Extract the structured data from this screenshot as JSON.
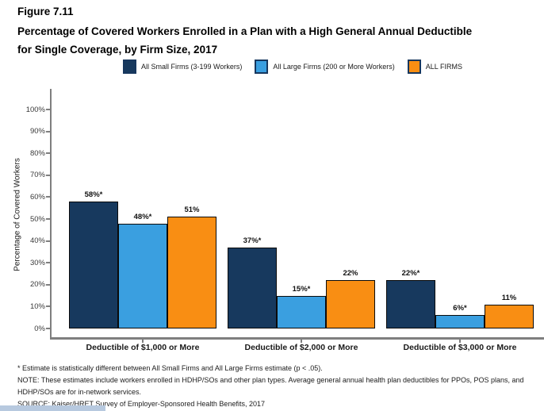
{
  "figure": {
    "label": "Figure 7.11",
    "title_lines": [
      "Percentage of Covered Workers Enrolled in a Plan with a High General Annual Deductible",
      "for Single Coverage, by Firm Size, 2017"
    ]
  },
  "chart_data": {
    "type": "bar",
    "title": "Percentage of Covered Workers Enrolled in a Plan with a High General Annual Deductible for Single Coverage, by Firm Size, 2017",
    "categories": [
      "Deductible of $1,000 or More",
      "Deductible of $2,000 or More",
      "Deductible of $3,000 or More"
    ],
    "series": [
      {
        "name": "All Small Firms (3-199 Workers)",
        "slug": "all-small-firms",
        "color": "#17395E",
        "values": [
          58,
          37,
          22
        ],
        "labels": [
          "58%*",
          "37%*",
          "22%*"
        ]
      },
      {
        "name": "All Large Firms (200 or More Workers)",
        "slug": "all-large-firms",
        "color": "#3A9FE0",
        "values": [
          48,
          15,
          6
        ],
        "labels": [
          "48%*",
          "15%*",
          "6%*"
        ]
      },
      {
        "name": "ALL FIRMS",
        "slug": "all-firms",
        "color": "#F98E13",
        "values": [
          51,
          22,
          11
        ],
        "labels": [
          "51%",
          "22%",
          "11%"
        ]
      }
    ],
    "ylabel": "Percentage of Covered Workers",
    "xlabel": "",
    "ylim": [
      0,
      100
    ],
    "y_tick_labels": [
      "0%",
      "10%",
      "20%",
      "30%",
      "40%",
      "50%",
      "60%",
      "70%",
      "80%",
      "90%",
      "100%"
    ],
    "grid": false,
    "legend_position": "top"
  },
  "footnotes": {
    "asterisk": "* Estimate is statistically different between All Small Firms and All Large Firms estimate (p < .05).",
    "note": "NOTE: These estimates include workers enrolled in HDHP/SOs and other plan types. Average general annual health plan deductibles for PPOs, POS plans, and HDHP/SOs are for in-network services.",
    "source": "SOURCE: Kaiser/HRET Survey of Employer-Sponsored Health Benefits, 2017"
  },
  "colors": {
    "axis": "#7f7f7f",
    "bar_border": "#0b0b0b",
    "legend_swatch_border": "#17375E",
    "accent_strip": "#B7C9DF",
    "small_firms": "#17395E",
    "large_firms": "#3A9FE0",
    "all_firms": "#F98E13"
  }
}
